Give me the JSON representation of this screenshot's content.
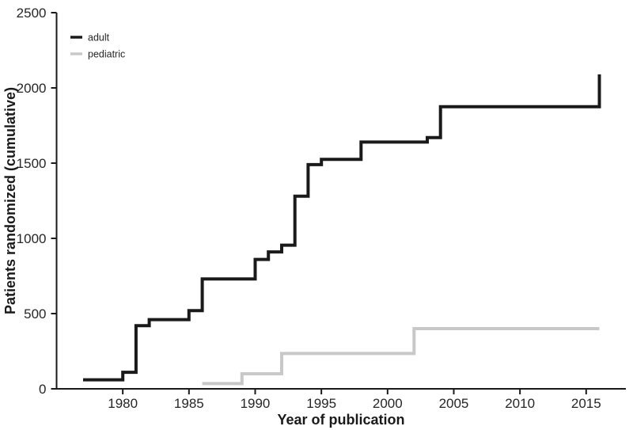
{
  "chart_data": {
    "type": "line",
    "step_style": "step-after",
    "title": "",
    "xlabel": "Year of publication",
    "ylabel": "Patients randomized (cumulative)",
    "xlim": [
      1975,
      2018
    ],
    "ylim": [
      0,
      2500
    ],
    "xticks": [
      1980,
      1985,
      1990,
      1995,
      2000,
      2005,
      2010,
      2015
    ],
    "yticks": [
      0,
      500,
      1000,
      1500,
      2000,
      2500
    ],
    "grid": false,
    "legend_position": "top-left",
    "axis_color": "#1a1a1a",
    "tick_label_color": "#262626",
    "background_color": "#ffffff",
    "series": [
      {
        "name": "adult",
        "color": "#1a1a1a",
        "line_width": 4,
        "points": [
          [
            1977,
            60
          ],
          [
            1980,
            110
          ],
          [
            1981,
            420
          ],
          [
            1982,
            460
          ],
          [
            1985,
            520
          ],
          [
            1986,
            730
          ],
          [
            1990,
            860
          ],
          [
            1991,
            910
          ],
          [
            1992,
            955
          ],
          [
            1993,
            1280
          ],
          [
            1994,
            1490
          ],
          [
            1995,
            1525
          ],
          [
            1998,
            1640
          ],
          [
            2003,
            1670
          ],
          [
            2004,
            1875
          ],
          [
            2016,
            2090
          ]
        ]
      },
      {
        "name": "pediatric",
        "color": "#c8c8c8",
        "line_width": 4,
        "points": [
          [
            1986,
            35
          ],
          [
            1989,
            100
          ],
          [
            1992,
            235
          ],
          [
            2002,
            400
          ],
          [
            2016,
            400
          ]
        ]
      }
    ]
  }
}
